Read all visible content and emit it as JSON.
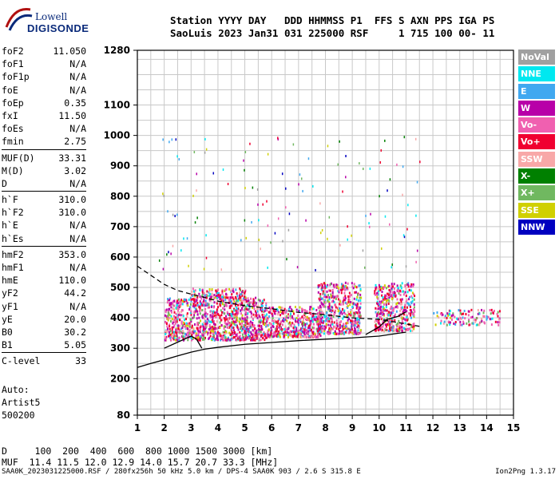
{
  "logo": {
    "line1": "Lowell",
    "line2": "DIGISONDE"
  },
  "header": {
    "line1": "Station YYYY DAY   DDD HHMMSS P1  FFS S AXN PPS IGA PS",
    "line2": "SaoLuis 2023 Jan31 031 225000 RSF     1 715 100 00- 11"
  },
  "params": {
    "group1": [
      {
        "label": "foF2",
        "value": "11.050"
      },
      {
        "label": "foF1",
        "value": "N/A"
      },
      {
        "label": "foF1p",
        "value": "N/A"
      },
      {
        "label": "foE",
        "value": "N/A"
      },
      {
        "label": "foEp",
        "value": "0.35"
      },
      {
        "label": "fxI",
        "value": "11.50"
      },
      {
        "label": "foEs",
        "value": "N/A"
      },
      {
        "label": "fmin",
        "value": "2.75"
      }
    ],
    "group2": [
      {
        "label": "MUF(D)",
        "value": "33.31"
      },
      {
        "label": "M(D)",
        "value": "3.02"
      },
      {
        "label": "D",
        "value": "N/A"
      }
    ],
    "group3": [
      {
        "label": "h`F",
        "value": "310.0"
      },
      {
        "label": "h`F2",
        "value": "310.0"
      },
      {
        "label": "h`E",
        "value": "N/A"
      },
      {
        "label": "h`Es",
        "value": "N/A"
      }
    ],
    "group4": [
      {
        "label": "hmF2",
        "value": "353.0"
      },
      {
        "label": "hmF1",
        "value": "N/A"
      },
      {
        "label": "hmE",
        "value": "110.0"
      },
      {
        "label": "yF2",
        "value": "44.2"
      },
      {
        "label": "yF1",
        "value": "N/A"
      },
      {
        "label": "yE",
        "value": "20.0"
      },
      {
        "label": "B0",
        "value": "30.2"
      },
      {
        "label": "B1",
        "value": "5.05"
      }
    ],
    "group5": [
      {
        "label": "C-level",
        "value": "33"
      }
    ]
  },
  "auto": {
    "line1": "Auto:",
    "line2": "Artist5",
    "line3": "500200"
  },
  "legend": [
    {
      "label": "NoVal",
      "color": "#a0a0a0"
    },
    {
      "label": "NNE",
      "color": "#00e8f0"
    },
    {
      "label": "E",
      "color": "#40a8f0"
    },
    {
      "label": "W",
      "color": "#b800a8"
    },
    {
      "label": "Vo-",
      "color": "#f060b0"
    },
    {
      "label": "Vo+",
      "color": "#f00030"
    },
    {
      "label": "SSW",
      "color": "#f8a8a8"
    },
    {
      "label": "X-",
      "color": "#008000"
    },
    {
      "label": "X+",
      "color": "#70b860"
    },
    {
      "label": "SSE",
      "color": "#d0d000"
    },
    {
      "label": "NNW",
      "color": "#0000c0"
    }
  ],
  "muf": {
    "line1": "D     100  200  400  600  800 1000 1500 3000 [km]",
    "line2": "MUF  11.4 11.5 12.0 12.9 14.0 15.7 20.7 33.3 [MHz]"
  },
  "footer": {
    "left": "SAA0K_2023031225000.RSF / 280fx256h 50 kHz 5.0 km / DPS-4 SAA0K 903 / 2.6 S 315.8 E",
    "right": "Ion2Png 1.3.17"
  },
  "chart_data": {
    "type": "scatter",
    "xlabel": "",
    "ylabel": "",
    "xlim": [
      1,
      15
    ],
    "ylim": [
      80,
      1280
    ],
    "xticks": [
      1,
      2,
      3,
      4,
      5,
      6,
      7,
      8,
      9,
      10,
      11,
      12,
      13,
      14,
      15
    ],
    "yticks": [
      80,
      200,
      300,
      400,
      500,
      600,
      700,
      800,
      900,
      1000,
      1100,
      1280
    ],
    "grid": true,
    "legend_position": "right",
    "series": [
      {
        "name": "profile",
        "style": "solid",
        "x": [
          1.0,
          1.5,
          2.0,
          2.5,
          3.0,
          3.5,
          4.0,
          5.0,
          6.0,
          7.0,
          8.0,
          9.0,
          10.0,
          11.0
        ],
        "y": [
          237,
          250,
          262,
          275,
          287,
          297,
          303,
          313,
          319,
          325,
          330,
          334,
          340,
          353
        ]
      },
      {
        "name": "profile_upper",
        "style": "dashed",
        "x": [
          1.0,
          1.5,
          2.0,
          2.5,
          3.0,
          3.5,
          4.0,
          5.0,
          6.0,
          7.0,
          8.0,
          9.0,
          10.0,
          11.0,
          11.5
        ],
        "y": [
          570,
          540,
          510,
          490,
          478,
          467,
          455,
          440,
          430,
          418,
          410,
          400,
          395,
          380,
          372
        ]
      },
      {
        "name": "trace",
        "style": "solid",
        "x": [
          2.0,
          2.5,
          3.0,
          3.2,
          3.4
        ],
        "y": [
          300,
          320,
          340,
          330,
          300
        ]
      },
      {
        "name": "trace_high",
        "style": "solid",
        "x": [
          9.5,
          10.0,
          10.3,
          10.7,
          11.0
        ],
        "y": [
          345,
          370,
          395,
          405,
          420
        ]
      }
    ]
  }
}
